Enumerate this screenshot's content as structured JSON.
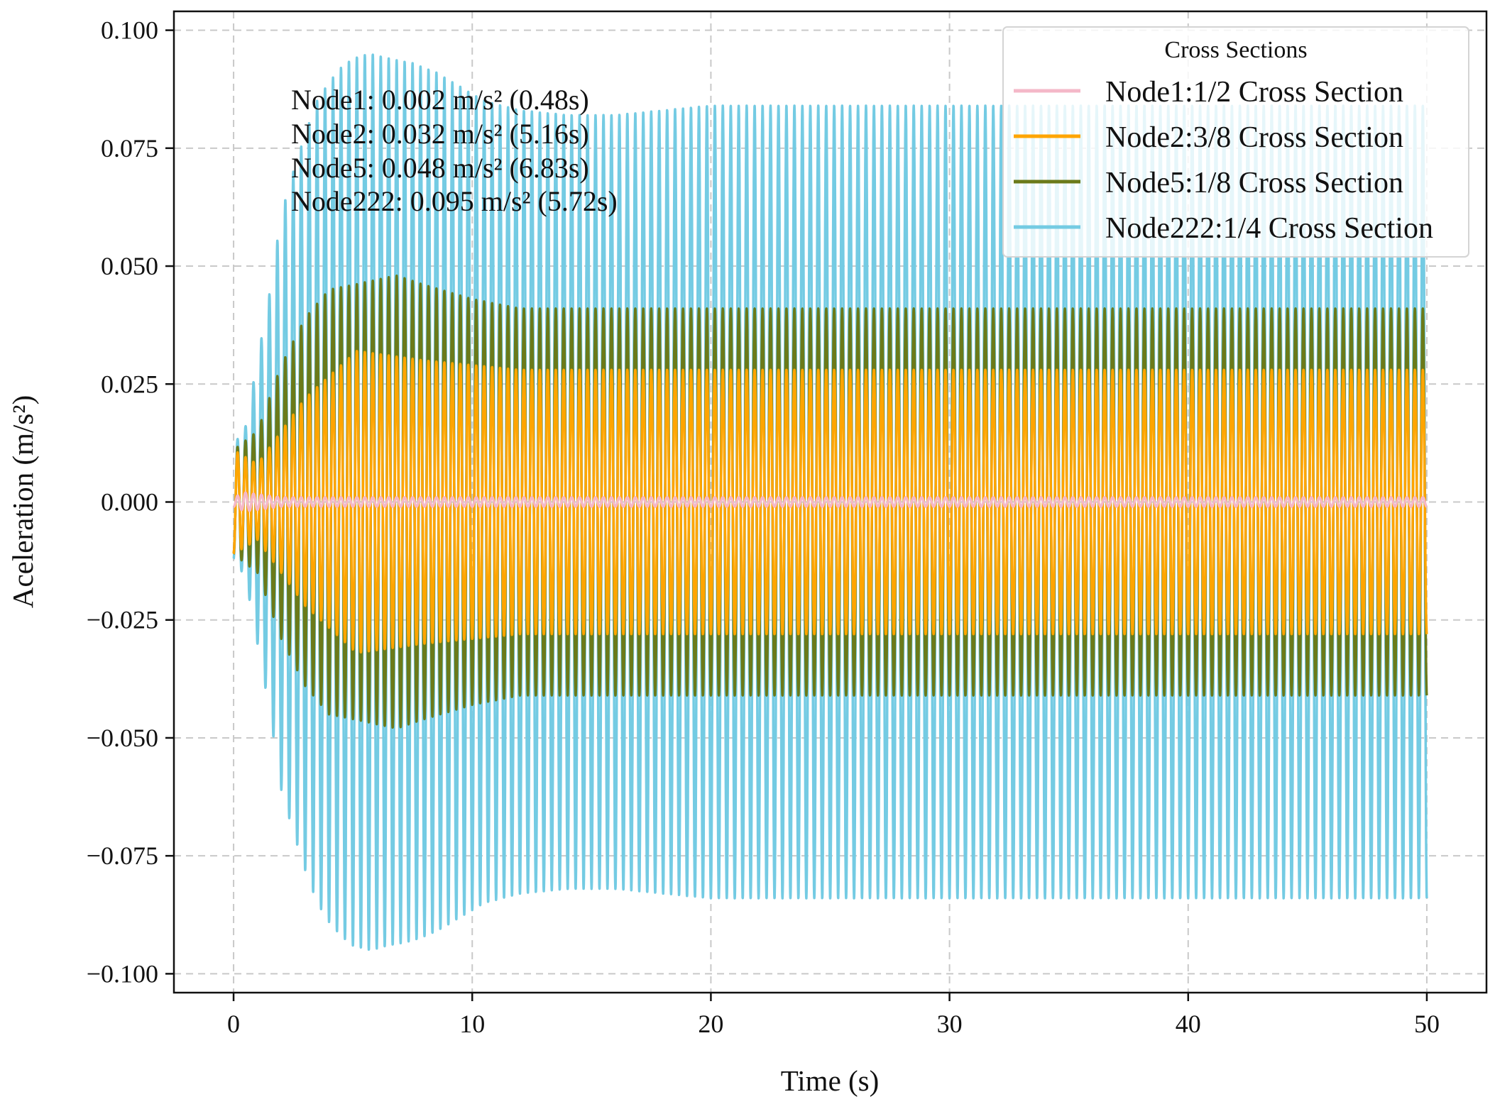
{
  "chart_data": {
    "type": "line",
    "title": "",
    "xlabel": "Time (s)",
    "ylabel": "Aceleration (m/s²)",
    "xlim": [
      -2.5,
      52.5
    ],
    "ylim": [
      -0.104,
      0.104
    ],
    "xticks": [
      0,
      10,
      20,
      30,
      40,
      50
    ],
    "xtick_labels": [
      "0",
      "10",
      "20",
      "30",
      "40",
      "50"
    ],
    "yticks": [
      0.1,
      0.075,
      0.05,
      0.025,
      0.0,
      -0.025,
      -0.05,
      -0.075,
      -0.1
    ],
    "ytick_labels": [
      "0.100",
      "0.075",
      "0.050",
      "0.025",
      "0.000",
      "−0.025",
      "−0.050",
      "−0.075",
      "−0.100"
    ],
    "grid": true,
    "legend": {
      "title": "Cross Sections",
      "placement": "top-right"
    },
    "annotations": [
      "Node1: 0.002 m/s² (0.48s)",
      "Node2: 0.032 m/s² (5.16s)",
      "Node5: 0.048 m/s² (6.83s)",
      "Node222: 0.095 m/s² (5.72s)"
    ],
    "series": [
      {
        "name": "Node1:1/2 Cross Section",
        "color": "#f4b8c8",
        "amplitude_envelope": {
          "t": [
            0,
            0.48,
            2,
            50
          ],
          "a": [
            0.001,
            0.002,
            0.001,
            0.001
          ]
        }
      },
      {
        "name": "Node2:3/8 Cross Section",
        "color": "#ffa500",
        "amplitude_envelope": {
          "t": [
            0,
            1,
            3,
            5.16,
            8,
            12,
            50
          ],
          "a": [
            0.011,
            0.008,
            0.022,
            0.032,
            0.03,
            0.028,
            0.028
          ]
        }
      },
      {
        "name": "Node5:1/8 Cross Section",
        "color": "#6b7a1a",
        "amplitude_envelope": {
          "t": [
            0,
            1,
            2,
            3,
            4,
            5,
            6.83,
            8,
            10,
            12,
            50
          ],
          "a": [
            0.011,
            0.015,
            0.029,
            0.039,
            0.045,
            0.046,
            0.048,
            0.046,
            0.043,
            0.041,
            0.041
          ]
        }
      },
      {
        "name": "Node222:1/4 Cross Section",
        "color": "#74cbe3",
        "amplitude_envelope": {
          "t": [
            0,
            0.5,
            1,
            1.5,
            2,
            2.5,
            3,
            3.5,
            4,
            4.5,
            5,
            5.72,
            6.5,
            7.5,
            8.5,
            9.5,
            10.5,
            12,
            14,
            16,
            18,
            20,
            22,
            50
          ],
          "a": [
            0.012,
            0.016,
            0.03,
            0.044,
            0.061,
            0.07,
            0.078,
            0.085,
            0.089,
            0.092,
            0.094,
            0.095,
            0.094,
            0.093,
            0.091,
            0.088,
            0.085,
            0.083,
            0.082,
            0.082,
            0.083,
            0.084,
            0.084,
            0.084
          ]
        }
      }
    ],
    "oscillation_frequency_hz": 3.0,
    "t_end": 50
  }
}
